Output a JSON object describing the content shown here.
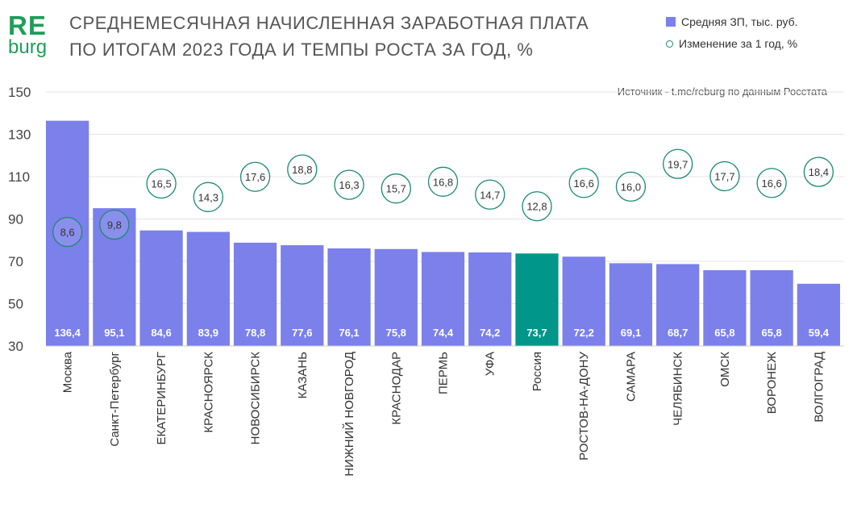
{
  "logo": {
    "line1": "RE",
    "line2": "burg"
  },
  "title_lines": [
    "СРЕДНЕМЕСЯЧНАЯ НАЧИСЛЕННАЯ ЗАРАБОТНАЯ ПЛАТА",
    "ПО ИТОГАМ 2023 ГОДА И ТЕМПЫ РОСТА ЗА ГОД, %"
  ],
  "legend": {
    "bar_label": "Средняя ЗП, тыс. руб.",
    "circle_label": "Изменение за 1 год, %"
  },
  "source": "Источник - t.me/reburg по данным Росстата",
  "colors": {
    "bar": "#7b80ea",
    "highlight": "#00968a",
    "circle": "#1a8a71",
    "brand": "#1f9e57"
  },
  "chart_data": {
    "type": "bar",
    "categories": [
      "Москва",
      "Санкт-Петербург",
      "ЕКАТЕРИНБУРГ",
      "КРАСНОЯРСК",
      "НОВОСИБИРСК",
      "КАЗАНЬ",
      "НИЖНИЙ НОВГОРОД",
      "КРАСНОДАР",
      "ПЕРМЬ",
      "УФА",
      "Россия",
      "РОСТОВ-НА-ДОНУ",
      "САМАРА",
      "ЧЕЛЯБИНСК",
      "ОМСК",
      "ВОРОНЕЖ",
      "ВОЛГОГРАД"
    ],
    "value_labels": [
      "136,4",
      "95,1",
      "84,6",
      "83,9",
      "78,8",
      "77,6",
      "76,1",
      "75,8",
      "74,4",
      "74,2",
      "73,7",
      "72,2",
      "69,1",
      "68,7",
      "65,8",
      "65,8",
      "59,4"
    ],
    "series": [
      {
        "name": "Средняя ЗП, тыс. руб.",
        "values": [
          136.4,
          95.1,
          84.6,
          83.9,
          78.8,
          77.6,
          76.1,
          75.8,
          74.4,
          74.2,
          73.7,
          72.2,
          69.1,
          68.7,
          65.8,
          65.8,
          59.4
        ]
      },
      {
        "name": "Изменение за 1 год, %",
        "values": [
          8.6,
          9.8,
          16.5,
          14.3,
          17.6,
          18.8,
          16.3,
          15.7,
          16.8,
          14.7,
          12.8,
          16.6,
          16.0,
          19.7,
          17.7,
          16.6,
          18.4
        ],
        "labels": [
          "8,6",
          "9,8",
          "16,5",
          "14,3",
          "17,6",
          "18,8",
          "16,3",
          "15,7",
          "16,8",
          "14,7",
          "12,8",
          "16,6",
          "16,0",
          "19,7",
          "17,7",
          "16,6",
          "18,4"
        ]
      }
    ],
    "highlight_category": "Россия",
    "y_ticks": [
      "30",
      "50",
      "70",
      "90",
      "110",
      "130",
      "150"
    ],
    "ylim": [
      30,
      150
    ],
    "grid": true,
    "legend_position": "top-right"
  }
}
